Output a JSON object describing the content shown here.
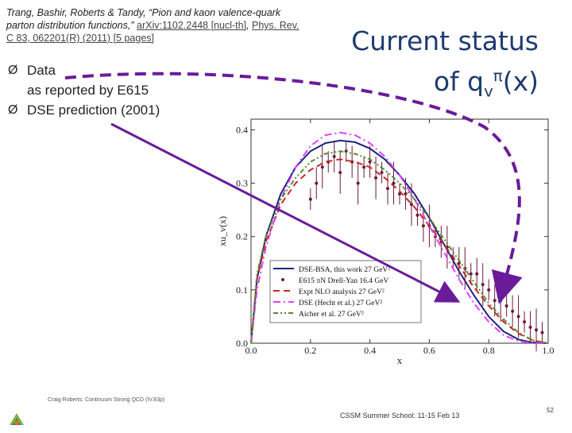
{
  "citation": {
    "authors_title": "Trang, Bashir, Roberts & Tandy, “Pion and kaon valence-quark parton distribution functions,”",
    "arxiv": "arXiv:1102.2448 [nucl-th]",
    "journal": "Phys. Rev. C 83, 062201(R) (2011) [5 pages]"
  },
  "title": {
    "line1": "Current status",
    "line2_prefix": "of q",
    "sub": "v",
    "sup": "π",
    "suffix": "(x)"
  },
  "bullets": [
    {
      "arrow": "Ø",
      "text": "Data",
      "text2": "as reported by E615"
    },
    {
      "arrow": "Ø",
      "text": "DSE prediction (2001)"
    }
  ],
  "footer": {
    "left": "Craig Roberts: Continuum Strong QCD (IV.83p)",
    "middle": "CSSM Summer School: 11-15 Feb 13",
    "page": "52"
  },
  "colors": {
    "title": "#1f3b6e",
    "annotation_arrow": "#6a1b9a",
    "dse_bsa": "#1a237e",
    "e615": "#6a1b3a",
    "expt_nlo": "#c62828",
    "dse_hecht": "#e040fb",
    "aicher": "#558b2f"
  },
  "chart_data": {
    "type": "line",
    "xlabel": "x",
    "ylabel": "xu_v(x)",
    "xlim": [
      0.0,
      1.0
    ],
    "ylim": [
      0.0,
      0.42
    ],
    "xticks": [
      "0.0",
      "0.2",
      "0.4",
      "0.6",
      "0.8",
      "1.0"
    ],
    "yticks": [
      "0.0",
      "0.1",
      "0.2",
      "0.3",
      "0.4"
    ],
    "legend_position": "lower-middle",
    "series": [
      {
        "name": "DSE-BSA, this work 27 GeV²",
        "style": "solid",
        "color": "#1a237e",
        "x": [
          0.0,
          0.02,
          0.05,
          0.1,
          0.15,
          0.2,
          0.25,
          0.3,
          0.35,
          0.4,
          0.45,
          0.5,
          0.55,
          0.6,
          0.65,
          0.7,
          0.75,
          0.8,
          0.85,
          0.9,
          0.95,
          1.0
        ],
        "y": [
          0.0,
          0.12,
          0.2,
          0.28,
          0.33,
          0.36,
          0.375,
          0.38,
          0.377,
          0.365,
          0.345,
          0.315,
          0.28,
          0.235,
          0.185,
          0.135,
          0.09,
          0.05,
          0.022,
          0.007,
          0.001,
          0.0
        ]
      },
      {
        "name": "E615 πN Drell-Yan 16.4 GeV",
        "style": "points",
        "color": "#6a1b3a",
        "x": [
          0.2,
          0.22,
          0.24,
          0.26,
          0.28,
          0.3,
          0.32,
          0.34,
          0.36,
          0.38,
          0.4,
          0.42,
          0.44,
          0.46,
          0.48,
          0.5,
          0.52,
          0.54,
          0.56,
          0.58,
          0.6,
          0.62,
          0.64,
          0.66,
          0.68,
          0.7,
          0.72,
          0.74,
          0.76,
          0.78,
          0.8,
          0.82,
          0.84,
          0.86,
          0.88,
          0.9,
          0.92,
          0.94,
          0.96,
          0.98
        ],
        "y": [
          0.27,
          0.3,
          0.33,
          0.34,
          0.35,
          0.32,
          0.36,
          0.34,
          0.3,
          0.33,
          0.34,
          0.31,
          0.32,
          0.29,
          0.3,
          0.28,
          0.28,
          0.26,
          0.24,
          0.22,
          0.22,
          0.2,
          0.19,
          0.18,
          0.16,
          0.15,
          0.14,
          0.13,
          0.13,
          0.11,
          0.1,
          0.08,
          0.08,
          0.07,
          0.06,
          0.05,
          0.04,
          0.03,
          0.025,
          0.02
        ]
      },
      {
        "name": "Expt NLO analysis 27 GeV²",
        "style": "dashed",
        "color": "#c62828",
        "x": [
          0.0,
          0.02,
          0.05,
          0.1,
          0.15,
          0.2,
          0.25,
          0.3,
          0.35,
          0.4,
          0.45,
          0.5,
          0.55,
          0.6,
          0.65,
          0.7,
          0.75,
          0.8,
          0.85,
          0.9,
          0.95,
          1.0
        ],
        "y": [
          0.0,
          0.12,
          0.19,
          0.26,
          0.3,
          0.325,
          0.34,
          0.345,
          0.34,
          0.33,
          0.31,
          0.285,
          0.255,
          0.22,
          0.185,
          0.145,
          0.105,
          0.07,
          0.04,
          0.018,
          0.005,
          0.0
        ]
      },
      {
        "name": "DSE (Hecht et al.) 27 GeV²",
        "style": "dashdot",
        "color": "#e040fb",
        "x": [
          0.0,
          0.02,
          0.05,
          0.1,
          0.15,
          0.2,
          0.25,
          0.3,
          0.35,
          0.4,
          0.45,
          0.5,
          0.55,
          0.6,
          0.65,
          0.7,
          0.75,
          0.8,
          0.85,
          0.9,
          0.95,
          1.0
        ],
        "y": [
          0.0,
          0.1,
          0.18,
          0.27,
          0.33,
          0.37,
          0.39,
          0.395,
          0.39,
          0.375,
          0.35,
          0.315,
          0.27,
          0.22,
          0.17,
          0.12,
          0.075,
          0.04,
          0.015,
          0.004,
          0.0,
          0.0
        ]
      },
      {
        "name": "Aicher et al. 27 GeV²",
        "style": "dashdotdot",
        "color": "#558b2f",
        "x": [
          0.0,
          0.02,
          0.05,
          0.1,
          0.15,
          0.2,
          0.25,
          0.3,
          0.35,
          0.4,
          0.45,
          0.5,
          0.55,
          0.6,
          0.65,
          0.7,
          0.75,
          0.8,
          0.85,
          0.9,
          0.95,
          1.0
        ],
        "y": [
          0.0,
          0.13,
          0.2,
          0.27,
          0.31,
          0.34,
          0.355,
          0.36,
          0.355,
          0.345,
          0.325,
          0.3,
          0.27,
          0.235,
          0.195,
          0.155,
          0.115,
          0.075,
          0.045,
          0.02,
          0.005,
          0.0
        ]
      }
    ]
  }
}
